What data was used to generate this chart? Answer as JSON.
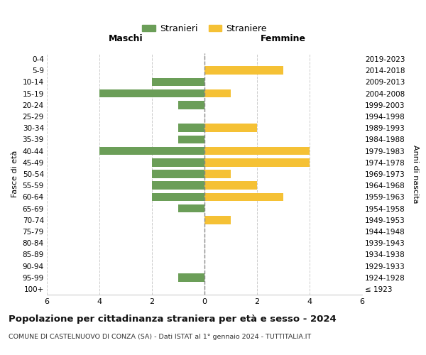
{
  "age_groups": [
    "100+",
    "95-99",
    "90-94",
    "85-89",
    "80-84",
    "75-79",
    "70-74",
    "65-69",
    "60-64",
    "55-59",
    "50-54",
    "45-49",
    "40-44",
    "35-39",
    "30-34",
    "25-29",
    "20-24",
    "15-19",
    "10-14",
    "5-9",
    "0-4"
  ],
  "birth_years": [
    "≤ 1923",
    "1924-1928",
    "1929-1933",
    "1934-1938",
    "1939-1943",
    "1944-1948",
    "1949-1953",
    "1954-1958",
    "1959-1963",
    "1964-1968",
    "1969-1973",
    "1974-1978",
    "1979-1983",
    "1984-1988",
    "1989-1993",
    "1994-1998",
    "1999-2003",
    "2004-2008",
    "2009-2013",
    "2014-2018",
    "2019-2023"
  ],
  "maschi": [
    0,
    1,
    0,
    0,
    0,
    0,
    0,
    1,
    2,
    2,
    2,
    2,
    4,
    1,
    1,
    0,
    1,
    4,
    2,
    0,
    0
  ],
  "femmine": [
    0,
    0,
    0,
    0,
    0,
    0,
    1,
    0,
    3,
    2,
    1,
    4,
    4,
    0,
    2,
    0,
    0,
    1,
    0,
    3,
    0
  ],
  "maschi_color": "#6b9e58",
  "femmine_color": "#f5c135",
  "background_color": "#ffffff",
  "grid_color": "#cccccc",
  "title": "Popolazione per cittadinanza straniera per età e sesso - 2024",
  "subtitle": "COMUNE DI CASTELNUOVO DI CONZA (SA) - Dati ISTAT al 1° gennaio 2024 - TUTTITALIA.IT",
  "xlabel_left": "Maschi",
  "xlabel_right": "Femmine",
  "ylabel_left": "Fasce di età",
  "ylabel_right": "Anni di nascita",
  "legend_maschi": "Stranieri",
  "legend_femmine": "Straniere",
  "xlim": 6
}
